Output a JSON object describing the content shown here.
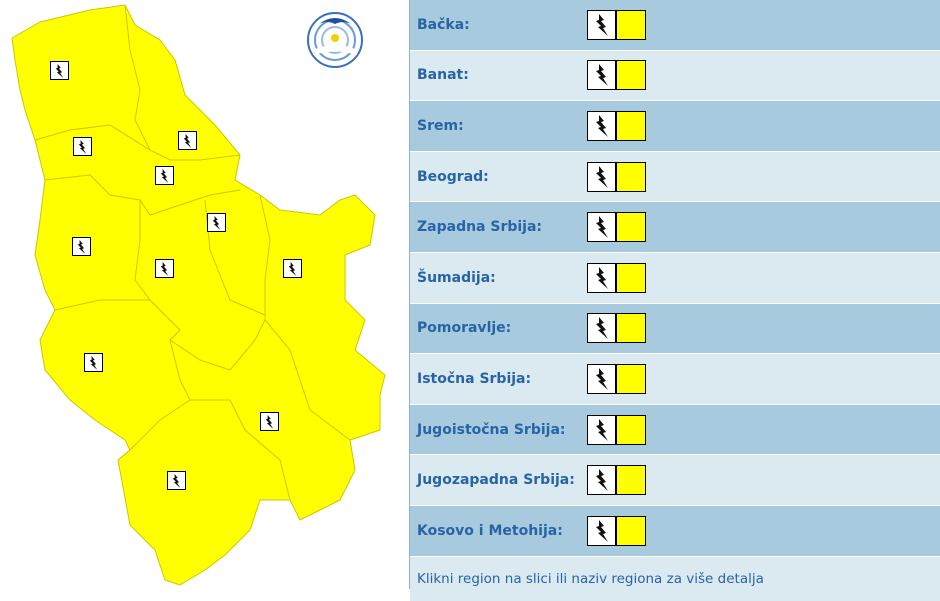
{
  "warning_color": "#ffff00",
  "warning_icon": "lightning-icon",
  "logo_text": "РХМЗ СРБИЈЕ",
  "regions": [
    {
      "label": "Bačka:"
    },
    {
      "label": "Banat:"
    },
    {
      "label": "Srem:"
    },
    {
      "label": "Beograd:"
    },
    {
      "label": "Zapadna Srbija:"
    },
    {
      "label": "Šumadija:"
    },
    {
      "label": "Pomoravlje:"
    },
    {
      "label": "Istočna Srbija:"
    },
    {
      "label": "Jugoistočna Srbija:"
    },
    {
      "label": "Jugozapadna Srbija:"
    },
    {
      "label": "Kosovo i Metohija:"
    }
  ],
  "footer": "Klikni region na slici ili naziv regiona za više detalja"
}
